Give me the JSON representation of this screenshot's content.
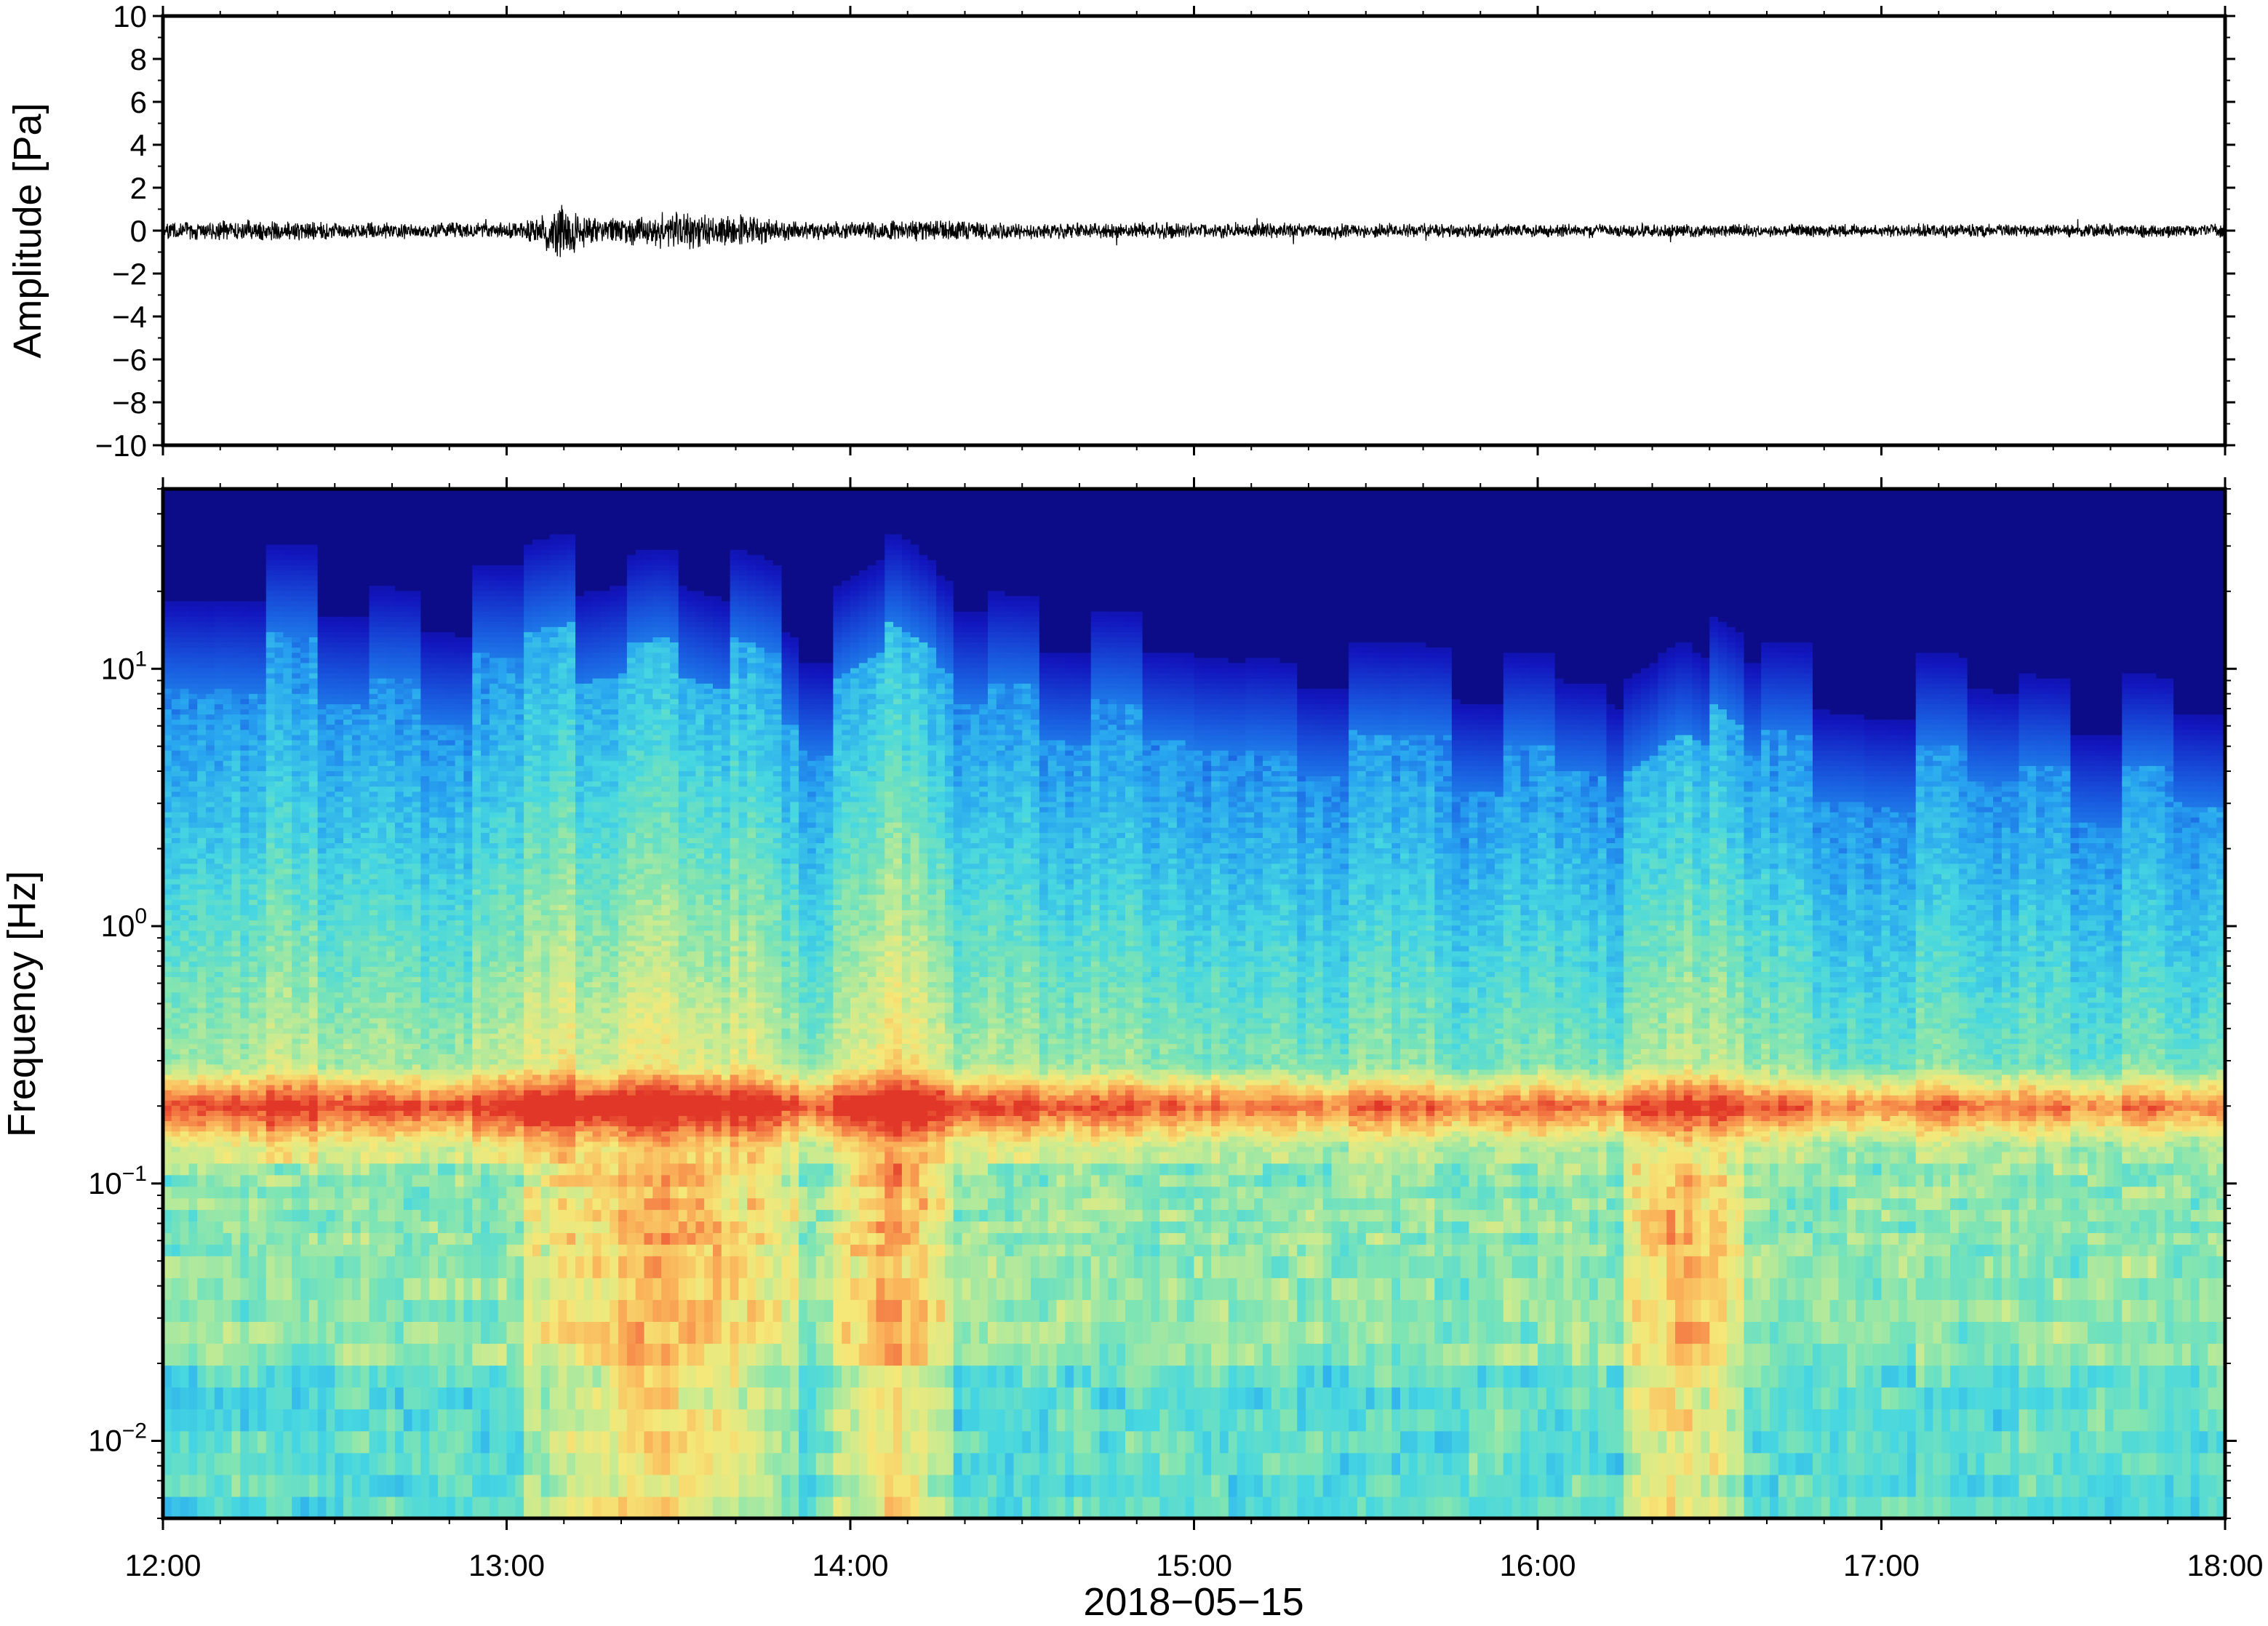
{
  "chart_data": [
    {
      "type": "line",
      "panel": "waveform",
      "ylabel": "Amplitude [Pa]",
      "ylim": [
        -10,
        10
      ],
      "yticks": [
        10,
        8,
        6,
        4,
        2,
        0,
        -2,
        -4,
        -6,
        -8,
        -10
      ],
      "ytick_labels": [
        "10",
        "8",
        "6",
        "4",
        "2",
        "0",
        "−2",
        "−4",
        "−6",
        "−8",
        "−10"
      ],
      "xlim": [
        "12:00",
        "18:00"
      ],
      "grid": false,
      "series": [
        {
          "color": "#000000",
          "envelope_x_hours": [
            12.0,
            12.3,
            12.6,
            12.9,
            13.0,
            13.1,
            13.15,
            13.2,
            13.3,
            13.4,
            13.5,
            13.6,
            13.7,
            13.8,
            14.0,
            14.2,
            14.5,
            15.0,
            16.0,
            17.0,
            18.0
          ],
          "envelope_amplitude_pa": [
            0.3,
            0.4,
            0.3,
            0.3,
            0.3,
            0.5,
            1.4,
            0.8,
            0.5,
            0.6,
            0.7,
            0.6,
            0.6,
            0.4,
            0.3,
            0.4,
            0.3,
            0.3,
            0.25,
            0.25,
            0.25
          ]
        }
      ]
    },
    {
      "type": "heatmap",
      "panel": "spectrogram",
      "ylabel": "Frequency [Hz]",
      "xlabel": "2018−05−15",
      "yscale": "log",
      "ylim": [
        0.005,
        50
      ],
      "yticks": [
        0.01,
        0.1,
        1,
        10
      ],
      "ytick_labels": [
        {
          "base": "10",
          "exp": "−2"
        },
        {
          "base": "10",
          "exp": "−1"
        },
        {
          "base": "10",
          "exp": "0"
        },
        {
          "base": "10",
          "exp": "1"
        }
      ],
      "x_tick_labels": [
        "12:00",
        "13:00",
        "14:00",
        "15:00",
        "16:00",
        "17:00",
        "18:00"
      ],
      "colormap": "jet",
      "colors": {
        "low": "#0a0a7a",
        "mid": "#7fe0b0",
        "high": "#e83a20"
      },
      "features": {
        "microbarom_band_hz": 0.2,
        "high_frequency_cutoff_hz": {
          "start": 10,
          "end": 3
        },
        "high_activity_hours": [
          [
            13.1,
            13.8
          ],
          [
            14.0,
            14.25
          ],
          [
            16.3,
            16.55
          ]
        ]
      }
    }
  ]
}
